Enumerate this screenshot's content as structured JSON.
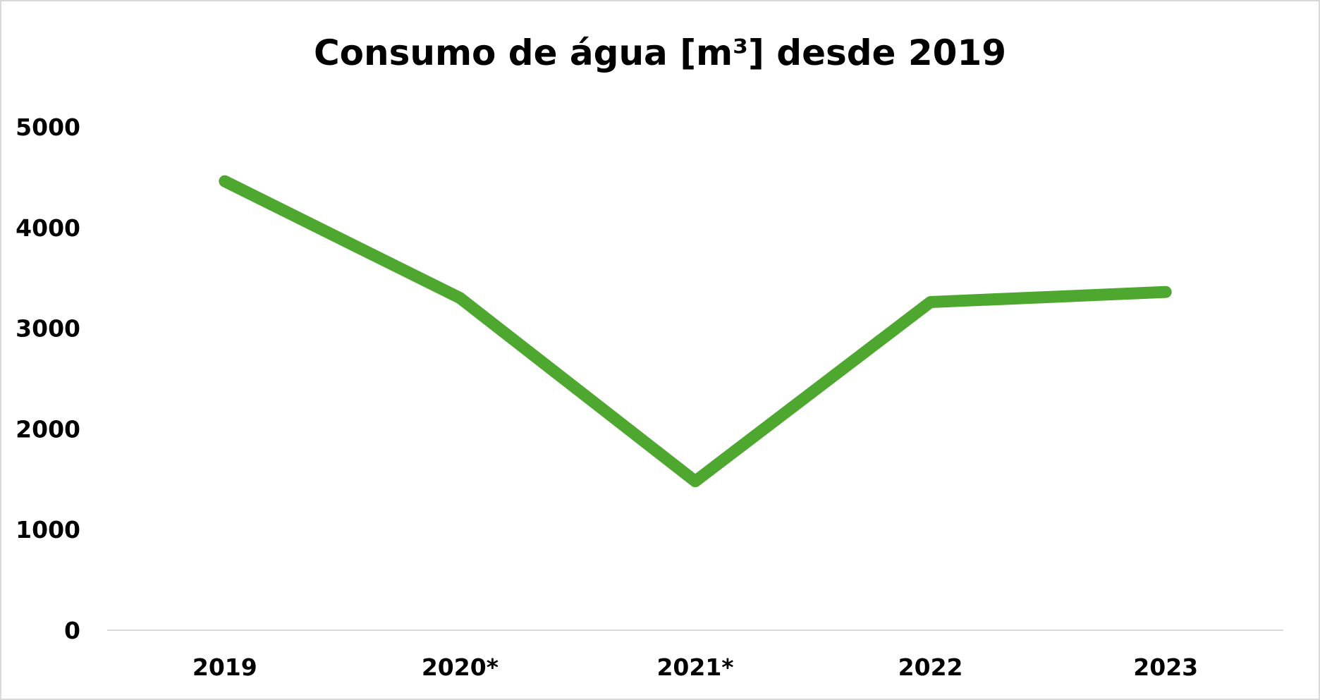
{
  "chart_data": {
    "type": "line",
    "title": "Consumo de água [m³] desde 2019",
    "xlabel": "",
    "ylabel": "",
    "categories": [
      "2019",
      "2020*",
      "2021*",
      "2022",
      "2023"
    ],
    "series": [
      {
        "values": [
          4460,
          3300,
          1480,
          3260,
          3360
        ]
      }
    ],
    "ylim": [
      0,
      5000
    ],
    "yticks": [
      0,
      1000,
      2000,
      3000,
      4000,
      5000
    ],
    "grid": false,
    "legend": "none",
    "colors": {
      "line": "#4ea72e",
      "axis": "#d9d9d9",
      "border": "#d9d9d9"
    }
  }
}
